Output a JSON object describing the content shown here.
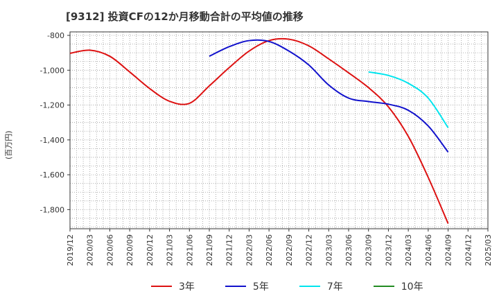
{
  "title": "[9312]  投資CFの12か月移動合計の平均値の推移",
  "ylabel": "(百万円)",
  "chart_data": {
    "type": "line",
    "x": [
      "2019/12",
      "2020/03",
      "2020/06",
      "2020/09",
      "2020/12",
      "2021/03",
      "2021/06",
      "2021/09",
      "2021/12",
      "2022/03",
      "2022/06",
      "2022/09",
      "2022/12",
      "2023/03",
      "2023/06",
      "2023/09",
      "2023/12",
      "2024/03",
      "2024/06",
      "2024/09",
      "2024/12",
      "2025/03"
    ],
    "yticks": [
      -800,
      -1000,
      -1200,
      -1400,
      -1600,
      -1800
    ],
    "ytick_labels": [
      "-800",
      "-1,000",
      "-1,200",
      "-1,400",
      "-1,600",
      "-1,800"
    ],
    "ylim": [
      -1910,
      -780
    ],
    "grid": true,
    "legend_position": "bottom",
    "series": [
      {
        "name": "3年",
        "color": "#dd1111",
        "values": [
          -903,
          -885,
          -920,
          -1010,
          -1105,
          -1178,
          -1190,
          -1090,
          -985,
          -890,
          -830,
          -822,
          -860,
          -935,
          -1015,
          -1100,
          -1210,
          -1380,
          -1615,
          -1880,
          null,
          null
        ]
      },
      {
        "name": "5年",
        "color": "#1111cc",
        "values": [
          null,
          null,
          null,
          null,
          null,
          null,
          null,
          -920,
          -865,
          -830,
          -835,
          -890,
          -970,
          -1085,
          -1160,
          -1180,
          -1195,
          -1230,
          -1320,
          -1470,
          null,
          null
        ]
      },
      {
        "name": "7年",
        "color": "#00e5ee",
        "values": [
          null,
          null,
          null,
          null,
          null,
          null,
          null,
          null,
          null,
          null,
          null,
          null,
          null,
          null,
          null,
          -1010,
          -1030,
          -1075,
          -1160,
          -1330,
          null,
          null
        ]
      },
      {
        "name": "10年",
        "color": "#228b22",
        "values": [
          null,
          null,
          null,
          null,
          null,
          null,
          null,
          null,
          null,
          null,
          null,
          null,
          null,
          null,
          null,
          null,
          null,
          null,
          null,
          null,
          null,
          null
        ]
      }
    ]
  }
}
